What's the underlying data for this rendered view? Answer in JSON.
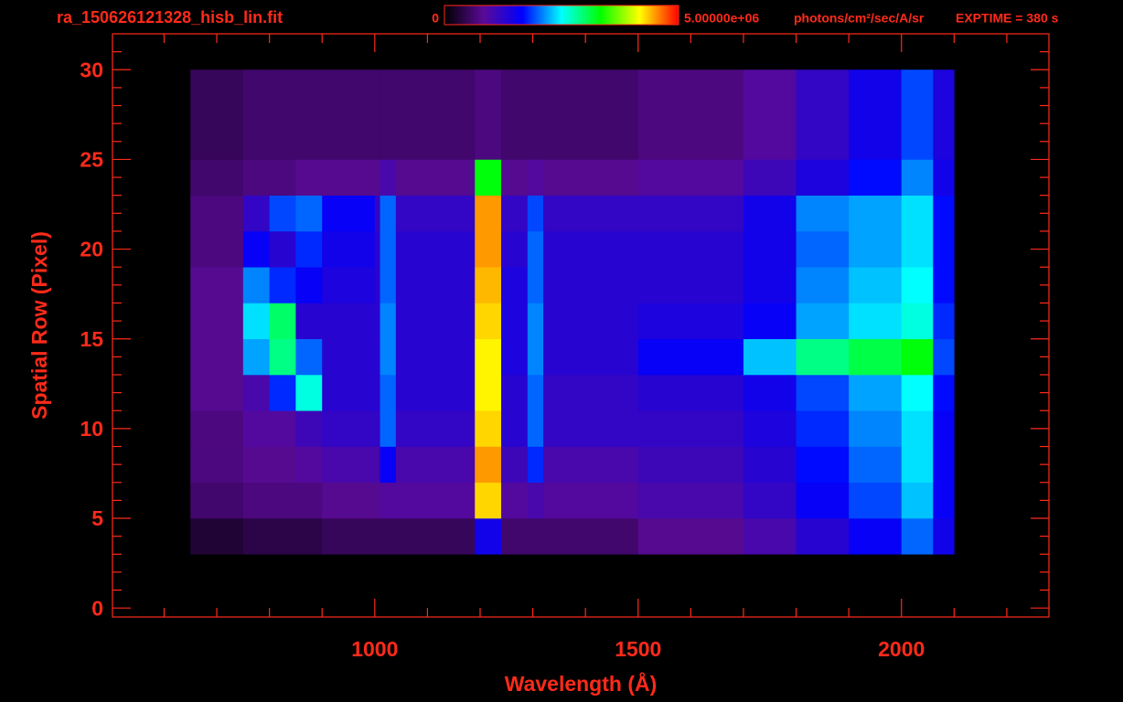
{
  "chart_data": {
    "type": "heatmap",
    "title": "ra_150626121328_hisb_lin.fit",
    "xlabel": "Wavelength (Å)",
    "ylabel": "Spatial Row (Pixel)",
    "annotation": "EXPTIME = 380 s",
    "colorbar_unit": "photons/cm²/sec/A/sr",
    "zlim": [
      0,
      5000000
    ],
    "zticks": [
      0,
      {
        "value": 5000000,
        "label": "5.00000e+06"
      }
    ],
    "colormap": [
      "#000000",
      "#5a0a96",
      "#0000ff",
      "#00ffff",
      "#00ff00",
      "#ffff00",
      "#ff0000"
    ],
    "xlim": [
      502,
      2280
    ],
    "ylim": [
      -0.5,
      32
    ],
    "xticks": [
      1000,
      1500,
      2000
    ],
    "yticks": [
      0,
      5,
      10,
      15,
      20,
      25,
      30
    ],
    "xminorticks": [
      600,
      700,
      800,
      900,
      1100,
      1200,
      1300,
      1400,
      1600,
      1700,
      1800,
      1900,
      2100,
      2200
    ],
    "yminorticks": [
      1,
      2,
      3,
      4,
      6,
      7,
      8,
      9,
      11,
      12,
      13,
      14,
      16,
      17,
      18,
      19,
      21,
      22,
      23,
      24,
      26,
      27,
      28,
      29,
      31
    ],
    "x_edges": [
      650,
      750,
      800,
      850,
      900,
      1000,
      1010,
      1040,
      1190,
      1240,
      1290,
      1320,
      1500,
      1700,
      1800,
      1900,
      2000,
      2060,
      2100
    ],
    "y_edges": [
      3,
      5,
      7,
      9,
      11,
      13,
      15,
      17,
      19,
      21,
      23,
      25,
      30
    ],
    "values": [
      [
        300000.0,
        400000.0,
        400000.0,
        400000.0,
        500000.0,
        500000.0,
        500000.0,
        500000.0,
        1500000.0,
        600000.0,
        600000.0,
        600000.0,
        800000.0,
        1000000.0,
        1300000.0,
        1600000.0,
        2000000.0,
        1500000.0
      ],
      [
        600000.0,
        700000.0,
        700000.0,
        700000.0,
        800000.0,
        800000.0,
        900000.0,
        900000.0,
        4300000.0,
        900000.0,
        1000000.0,
        900000.0,
        1000000.0,
        1200000.0,
        1600000.0,
        1900000.0,
        2300000.0,
        1600000.0
      ],
      [
        700000.0,
        800000.0,
        800000.0,
        900000.0,
        1000000.0,
        1000000.0,
        1600000.0,
        1000000.0,
        4500000.0,
        1100000.0,
        1800000.0,
        1000000.0,
        1100000.0,
        1300000.0,
        1700000.0,
        2000000.0,
        2400000.0,
        1600000.0
      ],
      [
        700000.0,
        900000.0,
        900000.0,
        1100000.0,
        1200000.0,
        1200000.0,
        2000000.0,
        1200000.0,
        4300000.0,
        1300000.0,
        2000000.0,
        1200000.0,
        1200000.0,
        1400000.0,
        1800000.0,
        2100000.0,
        2400000.0,
        1600000.0
      ],
      [
        800000.0,
        1000000.0,
        1800000.0,
        2600000.0,
        1300000.0,
        1300000.0,
        2000000.0,
        1300000.0,
        4200000.0,
        1300000.0,
        2000000.0,
        1200000.0,
        1300000.0,
        1500000.0,
        1900000.0,
        2200000.0,
        2500000.0,
        1700000.0
      ],
      [
        800000.0,
        2200000.0,
        2900000.0,
        2000000.0,
        1300000.0,
        1300000.0,
        2100000.0,
        1300000.0,
        4200000.0,
        1400000.0,
        2100000.0,
        1300000.0,
        1600000.0,
        2300000.0,
        2900000.0,
        3100000.0,
        3300000.0,
        1900000.0
      ],
      [
        800000.0,
        2400000.0,
        3000000.0,
        1300000.0,
        1300000.0,
        1300000.0,
        2100000.0,
        1300000.0,
        4300000.0,
        1400000.0,
        2100000.0,
        1300000.0,
        1400000.0,
        1600000.0,
        2200000.0,
        2400000.0,
        2600000.0,
        1800000.0
      ],
      [
        800000.0,
        2100000.0,
        1800000.0,
        1600000.0,
        1400000.0,
        1300000.0,
        2000000.0,
        1300000.0,
        4400000.0,
        1400000.0,
        2000000.0,
        1300000.0,
        1300000.0,
        1500000.0,
        2100000.0,
        2300000.0,
        2500000.0,
        1700000.0
      ],
      [
        700000.0,
        1600000.0,
        1300000.0,
        1800000.0,
        1500000.0,
        1300000.0,
        2000000.0,
        1300000.0,
        4500000.0,
        1300000.0,
        2000000.0,
        1300000.0,
        1300000.0,
        1500000.0,
        2000000.0,
        2200000.0,
        2400000.0,
        1700000.0
      ],
      [
        700000.0,
        1200000.0,
        1900000.0,
        2000000.0,
        1600000.0,
        1200000.0,
        2000000.0,
        1200000.0,
        4500000.0,
        1200000.0,
        1900000.0,
        1200000.0,
        1200000.0,
        1500000.0,
        2100000.0,
        2200000.0,
        2400000.0,
        1700000.0
      ],
      [
        600000.0,
        700000.0,
        700000.0,
        800000.0,
        800000.0,
        800000.0,
        1000000.0,
        800000.0,
        3300000.0,
        800000.0,
        900000.0,
        800000.0,
        900000.0,
        1100000.0,
        1400000.0,
        1700000.0,
        2100000.0,
        1500000.0
      ],
      [
        500000.0,
        600000.0,
        600000.0,
        600000.0,
        600000.0,
        600000.0,
        600000.0,
        600000.0,
        700000.0,
        600000.0,
        600000.0,
        600000.0,
        700000.0,
        900000.0,
        1200000.0,
        1500000.0,
        1900000.0,
        1400000.0
      ]
    ]
  }
}
